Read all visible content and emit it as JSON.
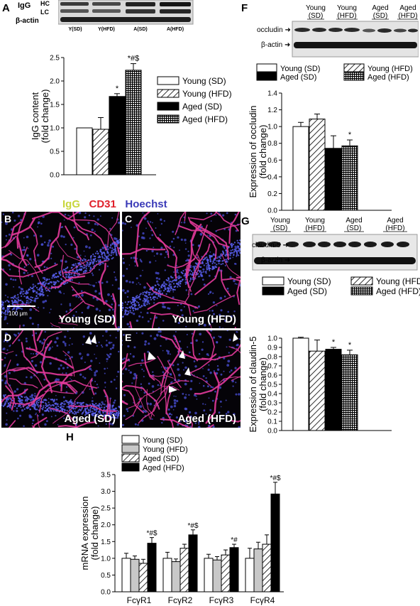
{
  "panel_letters": [
    "A",
    "B",
    "C",
    "D",
    "E",
    "F",
    "G",
    "H"
  ],
  "colors": {
    "igg": "#c8d63c",
    "cd31": "#e0202a",
    "hoechst": "#3a3ab8",
    "vessel": "#e23a9a",
    "nuclei": "#4a50d8",
    "arrow": "#ffffff"
  },
  "panel_a": {
    "blot_labels": {
      "hc": "HC",
      "lc": "LC",
      "igg": "IgG",
      "actin": "β-actin"
    },
    "lanes": [
      "Y(SD)",
      "Y(HFD)",
      "A(SD)",
      "A(HFD)"
    ]
  },
  "panel_f": {
    "lanes": [
      [
        "Young",
        "(SD)"
      ],
      [
        "Young",
        "(HFD)"
      ],
      [
        "Aged",
        "(SD)"
      ],
      [
        "Aged",
        "(HFD)"
      ]
    ],
    "blot_labels": {
      "occludin": "occludin",
      "actin": "β-actin"
    }
  },
  "panel_g": {
    "lanes": [
      [
        "Young",
        "(SD)"
      ],
      [
        "Young",
        "(HFD)"
      ],
      [
        "Aged",
        "(SD)"
      ],
      [
        "Aged",
        "(HFD)"
      ]
    ],
    "blot_labels": {
      "claudin": "claudin-5",
      "actin": "β-actin"
    }
  },
  "micrographs": {
    "header": {
      "igg": "IgG",
      "cd31": "CD31",
      "hoechst": "Hoechst"
    },
    "panels": [
      {
        "letter": "B",
        "caption": "Young (SD)"
      },
      {
        "letter": "C",
        "caption": "Young (HFD)"
      },
      {
        "letter": "D",
        "caption": "Aged (SD)"
      },
      {
        "letter": "E",
        "caption": "Aged (HFD)"
      }
    ],
    "scale_bar": "100 μm"
  },
  "chart_data": [
    {
      "id": "A",
      "type": "bar",
      "ylabel": "IgG content\n(fold change)",
      "ylim": [
        0,
        2.5
      ],
      "yticks": [
        "0.0",
        "0.5",
        "1.0",
        "1.5",
        "2.0",
        "2.5"
      ],
      "series": [
        {
          "name": "Young (SD)",
          "value": 1.0,
          "err": 0,
          "sig": ""
        },
        {
          "name": "Young (HFD)",
          "value": 0.97,
          "err": 0.25,
          "sig": ""
        },
        {
          "name": "Aged (SD)",
          "value": 1.67,
          "err": 0.06,
          "sig": "*"
        },
        {
          "name": "Aged (HFD)",
          "value": 2.23,
          "err": 0.14,
          "sig": "*#$"
        }
      ],
      "legend": "right"
    },
    {
      "id": "F",
      "type": "bar",
      "ylabel": "Expression of occludin\n(fold change)",
      "ylim": [
        0,
        1.4
      ],
      "yticks": [
        "0.0",
        "0.2",
        "0.4",
        "0.6",
        "0.8",
        "1.0",
        "1.2",
        "1.4"
      ],
      "series": [
        {
          "name": "Young (SD)",
          "value": 1.0,
          "err": 0.05,
          "sig": ""
        },
        {
          "name": "Young (HFD)",
          "value": 1.09,
          "err": 0.06,
          "sig": ""
        },
        {
          "name": "Aged (SD)",
          "value": 0.74,
          "err": 0.15,
          "sig": ""
        },
        {
          "name": "Aged (HFD)",
          "value": 0.77,
          "err": 0.07,
          "sig": "*"
        }
      ],
      "legend": "top"
    },
    {
      "id": "G",
      "type": "bar",
      "ylabel": "Expression of claudin-5\n(fold change)",
      "ylim": [
        0,
        1.0
      ],
      "yticks": [
        "0.0",
        "0.1",
        "0.2",
        "0.3",
        "0.4",
        "0.5",
        "0.6",
        "0.7",
        "0.8",
        "0.9",
        "1.0"
      ],
      "series": [
        {
          "name": "Young (SD)",
          "value": 1.0,
          "err": 0.01,
          "sig": ""
        },
        {
          "name": "Young (HFD)",
          "value": 0.86,
          "err": 0.12,
          "sig": ""
        },
        {
          "name": "Aged (SD)",
          "value": 0.88,
          "err": 0.02,
          "sig": "*"
        },
        {
          "name": "Aged (HFD)",
          "value": 0.82,
          "err": 0.05,
          "sig": "*"
        }
      ],
      "legend": "top"
    },
    {
      "id": "H",
      "type": "bar",
      "ylabel": "mRNA expression\n(fold change)",
      "ylim": [
        0,
        3.5
      ],
      "yticks": [
        "0.0",
        "0.5",
        "1.0",
        "1.5",
        "2.0",
        "2.5",
        "3.0",
        "3.5"
      ],
      "categories": [
        "FcγR1",
        "FcγR2",
        "FcγR3",
        "FcγR4"
      ],
      "series": [
        {
          "name": "Young (SD)",
          "values": [
            1.0,
            1.0,
            1.0,
            1.0
          ],
          "err": [
            0.15,
            0.18,
            0.12,
            0.3
          ]
        },
        {
          "name": "Young (HFD)",
          "values": [
            0.97,
            0.9,
            0.95,
            1.28
          ],
          "err": [
            0.1,
            0.08,
            0.1,
            0.2
          ]
        },
        {
          "name": "Aged (SD)",
          "values": [
            0.85,
            1.3,
            1.1,
            1.42
          ],
          "err": [
            0.12,
            0.12,
            0.15,
            0.28
          ]
        },
        {
          "name": "Aged (HFD)",
          "values": [
            1.45,
            1.7,
            1.32,
            2.92
          ],
          "err": [
            0.17,
            0.15,
            0.1,
            0.35
          ]
        }
      ],
      "sig": [
        "*#$",
        "*#$",
        "*#",
        "*#$"
      ],
      "legend": "top-left"
    }
  ]
}
